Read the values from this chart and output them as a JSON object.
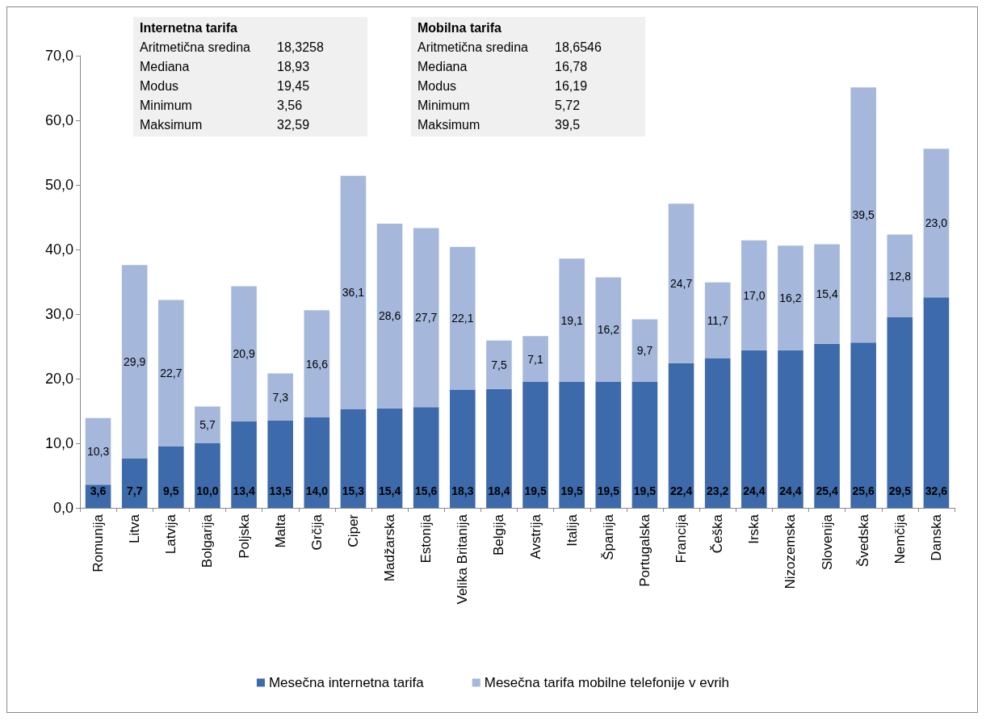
{
  "chart_data": {
    "type": "bar",
    "stacked": true,
    "categories": [
      "Romunija",
      "Litva",
      "Latvija",
      "Bolgarija",
      "Poljska",
      "Malta",
      "Grčija",
      "Ciper",
      "Madžarska",
      "Estonija",
      "Velika Britanija",
      "Belgija",
      "Avstrija",
      "Italija",
      "Španija",
      "Portugalska",
      "Francija",
      "Češka",
      "Irska",
      "Nizozemska",
      "Slovenija",
      "Švedska",
      "Nemčija",
      "Danska"
    ],
    "series": [
      {
        "name": "Mesečna internetna tarifa",
        "color": "#3c6aaa",
        "values": [
          3.6,
          7.7,
          9.5,
          10.0,
          13.4,
          13.5,
          14.0,
          15.3,
          15.4,
          15.6,
          18.3,
          18.4,
          19.5,
          19.5,
          19.5,
          19.5,
          22.4,
          23.2,
          24.4,
          24.4,
          25.4,
          25.6,
          29.5,
          32.6
        ],
        "value_labels": [
          "3,6",
          "7,7",
          "9,5",
          "10,0",
          "13,4",
          "13,5",
          "14,0",
          "15,3",
          "15,4",
          "15,6",
          "18,3",
          "18,4",
          "19,5",
          "19,5",
          "19,5",
          "19,5",
          "22,4",
          "23,2",
          "24,4",
          "24,4",
          "25,4",
          "25,6",
          "29,5",
          "32,6"
        ]
      },
      {
        "name": "Mesečna tarifa mobilne telefonije v evrih",
        "color": "#a5b8dc",
        "values": [
          10.3,
          29.9,
          22.7,
          5.7,
          20.9,
          7.3,
          16.6,
          36.1,
          28.6,
          27.7,
          22.1,
          7.5,
          7.1,
          19.1,
          16.2,
          9.7,
          24.7,
          11.7,
          17.0,
          16.2,
          15.4,
          39.5,
          12.8,
          23.0
        ],
        "value_labels": [
          "10,3",
          "29,9",
          "22,7",
          "5,7",
          "20,9",
          "7,3",
          "16,6",
          "36,1",
          "28,6",
          "27,7",
          "22,1",
          "7,5",
          "7,1",
          "19,1",
          "16,2",
          "9,7",
          "24,7",
          "11,7",
          "17,0",
          "16,2",
          "15,4",
          "39,5",
          "12,8",
          "23,0"
        ]
      }
    ],
    "ylim": [
      0,
      70
    ],
    "yticks": [
      {
        "value": 0,
        "label": "0,0"
      },
      {
        "value": 10,
        "label": "10,0"
      },
      {
        "value": 20,
        "label": "20,0"
      },
      {
        "value": 30,
        "label": "30,0"
      },
      {
        "value": 40,
        "label": "40,0"
      },
      {
        "value": 50,
        "label": "50,0"
      },
      {
        "value": 60,
        "label": "60,0"
      },
      {
        "value": 70,
        "label": "70,0"
      }
    ],
    "grid": false,
    "legend": "bottom",
    "annotations": [
      "Internetna tarifa",
      "Aritmetična sredina",
      "18,3258",
      "Mediana",
      "18,93",
      "Modus",
      "19,45",
      "Minimum",
      "3,56",
      "Maksimum",
      "32,59",
      "Mobilna tarifa",
      "Aritmetična sredina",
      "18,6546",
      "Mediana",
      "16,78",
      "Modus",
      "16,19",
      "Minimum",
      "5,72",
      "Maksimum",
      "39,5"
    ]
  }
}
